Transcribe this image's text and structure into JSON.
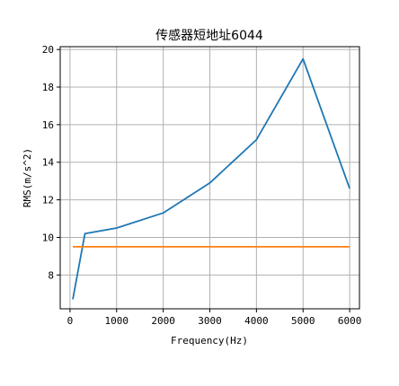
{
  "chart_data": {
    "type": "line",
    "title": "传感器短地址6044",
    "xlabel": "Frequency(Hz)",
    "ylabel": "RMS(m/s^2)",
    "xlim": [
      -210,
      6210
    ],
    "ylim": [
      6.2,
      20.15
    ],
    "x_ticks": [
      0,
      1000,
      2000,
      3000,
      4000,
      5000,
      6000
    ],
    "y_ticks": [
      8,
      10,
      12,
      14,
      16,
      18,
      20
    ],
    "grid": true,
    "series": [
      {
        "color": "#1f77b4",
        "points": [
          [
            60,
            6.7
          ],
          [
            320,
            10.2
          ],
          [
            1000,
            10.5
          ],
          [
            2000,
            11.3
          ],
          [
            3000,
            12.9
          ],
          [
            4000,
            15.2
          ],
          [
            5000,
            19.5
          ],
          [
            6000,
            12.6
          ]
        ]
      },
      {
        "color": "#ff7f0e",
        "points": [
          [
            60,
            9.5
          ],
          [
            6000,
            9.5
          ]
        ]
      }
    ]
  }
}
